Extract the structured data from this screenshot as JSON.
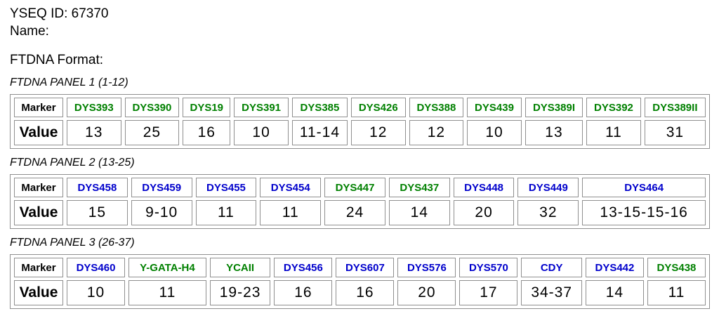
{
  "page": {
    "yseq_id": "YSEQ ID: 67370",
    "name_label": "Name:",
    "format_heading": "FTDNA Format:"
  },
  "colors": {
    "green": "#008000",
    "blue": "#0000CC",
    "border": "#8f8f8f",
    "text": "#000000"
  },
  "table_headers": {
    "marker": "Marker",
    "value": "Value"
  },
  "panels": [
    {
      "title": "FTDNA PANEL 1 (1-12)",
      "markers": [
        {
          "name": "DYS393",
          "value": "13",
          "color": "green"
        },
        {
          "name": "DYS390",
          "value": "25",
          "color": "green"
        },
        {
          "name": "DYS19",
          "value": "16",
          "color": "green"
        },
        {
          "name": "DYS391",
          "value": "10",
          "color": "green"
        },
        {
          "name": "DYS385",
          "value": "11-14",
          "color": "green"
        },
        {
          "name": "DYS426",
          "value": "12",
          "color": "green"
        },
        {
          "name": "DYS388",
          "value": "12",
          "color": "green"
        },
        {
          "name": "DYS439",
          "value": "10",
          "color": "green"
        },
        {
          "name": "DYS389I",
          "value": "13",
          "color": "green"
        },
        {
          "name": "DYS392",
          "value": "11",
          "color": "green"
        },
        {
          "name": "DYS389II",
          "value": "31",
          "color": "green"
        }
      ]
    },
    {
      "title": "FTDNA PANEL 2 (13-25)",
      "markers": [
        {
          "name": "DYS458",
          "value": "15",
          "color": "blue"
        },
        {
          "name": "DYS459",
          "value": "9-10",
          "color": "blue"
        },
        {
          "name": "DYS455",
          "value": "11",
          "color": "blue"
        },
        {
          "name": "DYS454",
          "value": "11",
          "color": "blue"
        },
        {
          "name": "DYS447",
          "value": "24",
          "color": "green"
        },
        {
          "name": "DYS437",
          "value": "14",
          "color": "green"
        },
        {
          "name": "DYS448",
          "value": "20",
          "color": "blue"
        },
        {
          "name": "DYS449",
          "value": "32",
          "color": "blue"
        },
        {
          "name": "DYS464",
          "value": "13-15-15-16",
          "color": "blue"
        }
      ]
    },
    {
      "title": "FTDNA PANEL 3 (26-37)",
      "markers": [
        {
          "name": "DYS460",
          "value": "10",
          "color": "blue"
        },
        {
          "name": "Y-GATA-H4",
          "value": "11",
          "color": "green"
        },
        {
          "name": "YCAII",
          "value": "19-23",
          "color": "green"
        },
        {
          "name": "DYS456",
          "value": "16",
          "color": "blue"
        },
        {
          "name": "DYS607",
          "value": "16",
          "color": "blue"
        },
        {
          "name": "DYS576",
          "value": "20",
          "color": "blue"
        },
        {
          "name": "DYS570",
          "value": "17",
          "color": "blue"
        },
        {
          "name": "CDY",
          "value": "34-37",
          "color": "blue"
        },
        {
          "name": "DYS442",
          "value": "14",
          "color": "blue"
        },
        {
          "name": "DYS438",
          "value": "11",
          "color": "green"
        }
      ]
    }
  ]
}
